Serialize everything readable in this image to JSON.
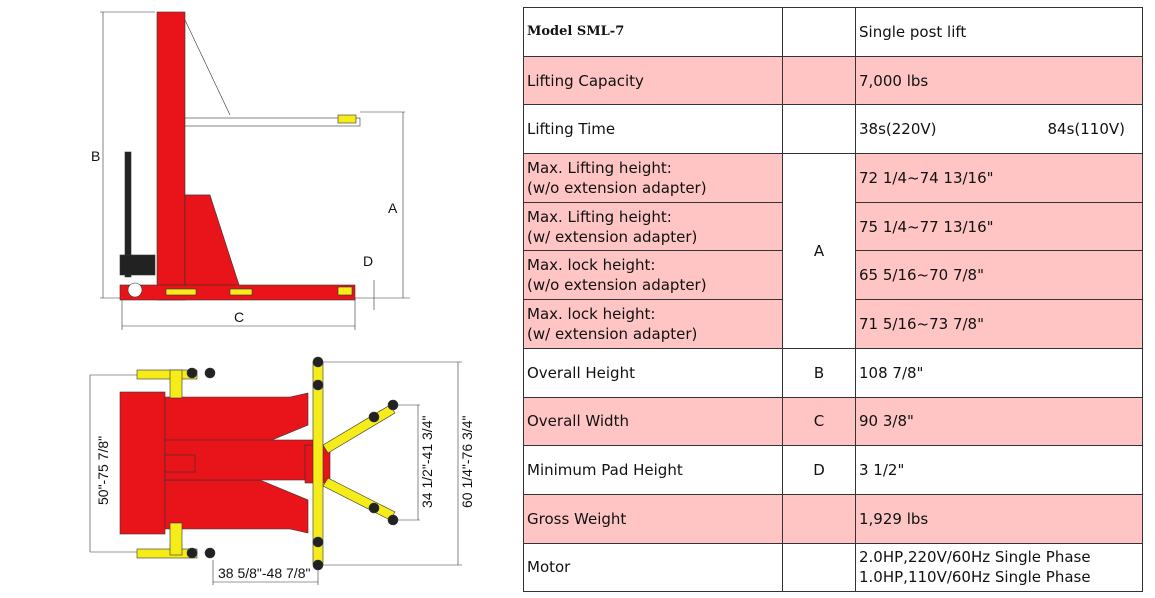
{
  "drawings": {
    "side_view_labels": {
      "a": "A",
      "b": "B",
      "c": "C",
      "d": "D"
    },
    "top_view_labels": {
      "width": "50\"-75 7/8\"",
      "arm_spread": "34 1/2\"-41 3/4\"",
      "overall": "60 1/4\"-76 3/4\"",
      "reach": "38 5/8\"-48 7/8\""
    },
    "colors": {
      "frame": "#e8141a",
      "arms": "#f5ec1a"
    }
  },
  "spec_table": {
    "colors": {
      "highlight_row": "#ffc5c5"
    },
    "rows": [
      {
        "label": "Model SML-7",
        "code": "",
        "value": "Single post lift"
      },
      {
        "label": "Lifting Capacity",
        "code": "",
        "value": "7,000 lbs"
      },
      {
        "label": "Lifting Time",
        "code": "",
        "value": "38s(220V)",
        "value2": "84s(110V)"
      },
      {
        "label": "Max. Lifting height:",
        "label2": "(w/o extension adapter)",
        "code": "A",
        "value": "72 1/4~74 13/16\""
      },
      {
        "label": "Max. Lifting height:",
        "label2": "(w/ extension adapter)",
        "value": "75 1/4~77 13/16\""
      },
      {
        "label": "Max. lock height:",
        "label2": "(w/o extension adapter)",
        "value": "65 5/16~70 7/8\""
      },
      {
        "label": "Max. lock height:",
        "label2": "(w/ extension adapter)",
        "value": "71 5/16~73 7/8\""
      },
      {
        "label": "Overall Height",
        "code": "B",
        "value": "108 7/8\""
      },
      {
        "label": "Overall Width",
        "code": "C",
        "value": "90 3/8\""
      },
      {
        "label": "Minimum Pad Height",
        "code": "D",
        "value": "3 1/2\""
      },
      {
        "label": "Gross Weight",
        "code": "",
        "value": "1,929 lbs"
      },
      {
        "label": "Motor",
        "code": "",
        "value": "2.0HP,220V/60Hz Single Phase",
        "value2": "1.0HP,110V/60Hz Single Phase"
      }
    ]
  }
}
